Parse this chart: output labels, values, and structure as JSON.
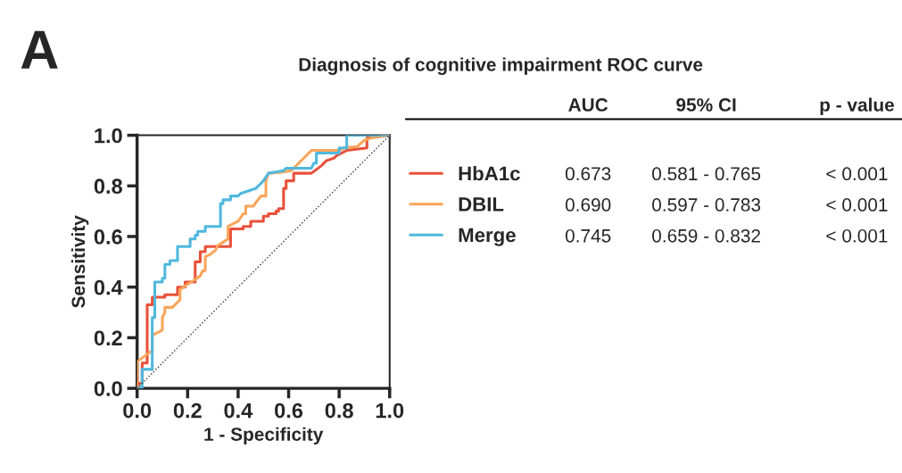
{
  "chart_data": {
    "type": "line",
    "title": "Diagnosis of cognitive impairment ROC curve",
    "xlabel": "1 - Specificity",
    "ylabel": "Sensitivity",
    "xlim": [
      0,
      1
    ],
    "ylim": [
      0,
      1
    ],
    "xticks": [
      {
        "value": 0,
        "label": "0.0"
      },
      {
        "value": 0.2,
        "label": "0.2"
      },
      {
        "value": 0.4,
        "label": "0.4"
      },
      {
        "value": 0.6,
        "label": "0.6"
      },
      {
        "value": 0.8,
        "label": "0.8"
      },
      {
        "value": 1,
        "label": "1.0"
      }
    ],
    "yticks": [
      {
        "value": 0,
        "label": "0.0"
      },
      {
        "value": 0.2,
        "label": "0.2"
      },
      {
        "value": 0.4,
        "label": "0.4"
      },
      {
        "value": 0.6,
        "label": "0.6"
      },
      {
        "value": 0.8,
        "label": "0.8"
      },
      {
        "value": 1,
        "label": "1.0"
      }
    ],
    "grid": false,
    "legend": "right",
    "marker": "none",
    "series": [
      {
        "name": "HbA1c",
        "color": "#e8503a",
        "x": [
          0,
          0,
          0.02,
          0.02,
          0.04,
          0.04,
          0.06,
          0.06,
          0.11,
          0.11,
          0.16,
          0.16,
          0.19,
          0.19,
          0.23,
          0.23,
          0.25,
          0.25,
          0.27,
          0.27,
          0.37,
          0.37,
          0.42,
          0.42,
          0.45,
          0.45,
          0.5,
          0.5,
          0.52,
          0.52,
          0.55,
          0.55,
          0.56,
          0.56,
          0.58,
          0.58,
          0.59,
          0.59,
          0.62,
          0.62,
          0.69,
          0.73,
          0.75,
          0.78,
          0.79,
          0.83,
          0.91,
          0.91,
          1.0
        ],
        "values": [
          0,
          0.02,
          0.02,
          0.1,
          0.1,
          0.33,
          0.33,
          0.36,
          0.36,
          0.37,
          0.37,
          0.4,
          0.4,
          0.42,
          0.42,
          0.5,
          0.5,
          0.54,
          0.54,
          0.56,
          0.56,
          0.63,
          0.63,
          0.64,
          0.64,
          0.66,
          0.66,
          0.68,
          0.68,
          0.69,
          0.69,
          0.7,
          0.7,
          0.71,
          0.71,
          0.79,
          0.79,
          0.82,
          0.82,
          0.85,
          0.85,
          0.88,
          0.9,
          0.91,
          0.92,
          0.94,
          0.95,
          0.99,
          1.0
        ]
      },
      {
        "name": "DBIL",
        "color": "#fba55a",
        "x": [
          0,
          0,
          0.02,
          0.06,
          0.06,
          0.1,
          0.1,
          0.11,
          0.11,
          0.14,
          0.17,
          0.17,
          0.19,
          0.23,
          0.25,
          0.26,
          0.27,
          0.27,
          0.29,
          0.31,
          0.32,
          0.36,
          0.36,
          0.4,
          0.42,
          0.43,
          0.43,
          0.46,
          0.49,
          0.51,
          0.51,
          0.52,
          0.58,
          0.61,
          0.64,
          0.67,
          0.69,
          0.8,
          0.82,
          0.87,
          0.9,
          0.93,
          1.0
        ],
        "values": [
          0,
          0.105,
          0.12,
          0.15,
          0.21,
          0.23,
          0.28,
          0.3,
          0.32,
          0.32,
          0.35,
          0.39,
          0.405,
          0.43,
          0.445,
          0.465,
          0.465,
          0.52,
          0.53,
          0.545,
          0.565,
          0.59,
          0.64,
          0.66,
          0.69,
          0.69,
          0.72,
          0.72,
          0.76,
          0.76,
          0.82,
          0.85,
          0.855,
          0.86,
          0.89,
          0.92,
          0.94,
          0.94,
          0.95,
          0.955,
          0.98,
          0.99,
          1.0
        ]
      },
      {
        "name": "Merge",
        "color": "#4fb8dc",
        "x": [
          0,
          0.02,
          0.02,
          0.06,
          0.06,
          0.07,
          0.07,
          0.1,
          0.1,
          0.11,
          0.11,
          0.13,
          0.13,
          0.16,
          0.16,
          0.21,
          0.21,
          0.23,
          0.23,
          0.24,
          0.24,
          0.27,
          0.27,
          0.33,
          0.33,
          0.34,
          0.34,
          0.37,
          0.37,
          0.4,
          0.41,
          0.44,
          0.47,
          0.49,
          0.5,
          0.52,
          0.58,
          0.59,
          0.69,
          0.7,
          0.71,
          0.71,
          0.8,
          0.8,
          0.83,
          0.83,
          1.0
        ],
        "values": [
          0,
          0,
          0.075,
          0.075,
          0.28,
          0.28,
          0.42,
          0.42,
          0.435,
          0.435,
          0.49,
          0.49,
          0.505,
          0.505,
          0.56,
          0.56,
          0.59,
          0.59,
          0.605,
          0.605,
          0.62,
          0.62,
          0.64,
          0.64,
          0.73,
          0.73,
          0.745,
          0.745,
          0.76,
          0.76,
          0.77,
          0.78,
          0.79,
          0.81,
          0.82,
          0.85,
          0.86,
          0.87,
          0.87,
          0.89,
          0.89,
          0.93,
          0.93,
          0.95,
          0.95,
          1.0,
          1.0
        ]
      },
      {
        "color": "#333333",
        "line_style": "dotted",
        "x": [
          0,
          1
        ],
        "values": [
          0,
          1
        ]
      }
    ],
    "annotations": [
      "A",
      "AUC",
      "95% CI",
      "p - value",
      "0.673",
      "0.581 - 0.765",
      "< 0.001",
      "0.690",
      "0.597 - 0.783",
      "< 0.001",
      "0.745",
      "0.659 - 0.832",
      "< 0.001"
    ]
  }
}
